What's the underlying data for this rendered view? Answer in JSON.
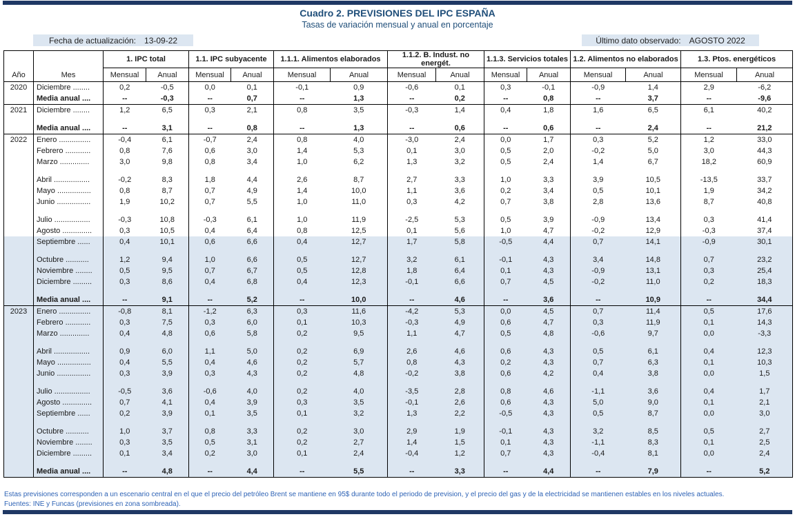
{
  "title": "Cuadro 2. PREVISIONES DEL IPC ESPAÑA",
  "subtitle": "Tasas de variación mensual y anual en porcentaje",
  "update": {
    "label": "Fecha de actualización:",
    "value": "13-09-22"
  },
  "observed": {
    "label": "Último dato observado:",
    "value": "AGOSTO 2022"
  },
  "colors": {
    "accent_bar": "#1f3864",
    "title_text": "#1f4e79",
    "shaded_zone": "#dce6f1",
    "footer_text": "#2d62b5",
    "border": "#000000"
  },
  "table": {
    "year_header": "Año",
    "month_header": "Mes",
    "groups": [
      "1. IPC total",
      "1.1. IPC subyacente",
      "1.1.1. Alimentos elaborados",
      "1.1.2. B. Indust. no energét.",
      "1.1.3. Servicios totales",
      "1.2. Alimentos no elaborados",
      "1.3. Ptos. energéticos"
    ],
    "subheaders": [
      "Mensual",
      "Anual"
    ],
    "blocks": [
      {
        "year": "2020",
        "rows": [
          {
            "label": "Diciembre ........",
            "values": [
              "0,2",
              "-0,5",
              "0,0",
              "0,1",
              "-0,1",
              "0,9",
              "-0,6",
              "0,1",
              "0,3",
              "-0,1",
              "-0,9",
              "1,4",
              "2,9",
              "-6,2"
            ]
          },
          {
            "label": "Media anual ....",
            "bold": true,
            "values": [
              "--",
              "-0,3",
              "--",
              "0,7",
              "--",
              "1,3",
              "--",
              "0,2",
              "--",
              "0,8",
              "--",
              "3,7",
              "--",
              "-9,6"
            ]
          }
        ]
      },
      {
        "year": "2021",
        "rows": [
          {
            "label": "Diciembre ........",
            "values": [
              "1,2",
              "6,5",
              "0,3",
              "2,1",
              "0,8",
              "3,5",
              "-0,3",
              "1,4",
              "0,4",
              "1,8",
              "1,6",
              "6,5",
              "6,1",
              "40,2"
            ]
          },
          {
            "spacer": true
          },
          {
            "label": "Media anual ....",
            "bold": true,
            "values": [
              "--",
              "3,1",
              "--",
              "0,8",
              "--",
              "1,3",
              "--",
              "0,6",
              "--",
              "0,6",
              "--",
              "2,4",
              "--",
              "21,2"
            ]
          }
        ]
      },
      {
        "year": "2022",
        "rows": [
          {
            "label": "Enero ...............",
            "values": [
              "-0,4",
              "6,1",
              "-0,7",
              "2,4",
              "0,8",
              "4,0",
              "-3,0",
              "2,4",
              "0,0",
              "1,7",
              "0,3",
              "5,2",
              "1,2",
              "33,0"
            ]
          },
          {
            "label": "Febrero ............",
            "values": [
              "0,8",
              "7,6",
              "0,6",
              "3,0",
              "1,4",
              "5,3",
              "0,1",
              "3,0",
              "0,5",
              "2,0",
              "-0,2",
              "5,0",
              "3,0",
              "44,3"
            ]
          },
          {
            "label": "Marzo ..............",
            "values": [
              "3,0",
              "9,8",
              "0,8",
              "3,4",
              "1,0",
              "6,2",
              "1,3",
              "3,2",
              "0,5",
              "2,4",
              "1,4",
              "6,7",
              "18,2",
              "60,9"
            ]
          },
          {
            "spacer": true
          },
          {
            "label": "Abril .................",
            "values": [
              "-0,2",
              "8,3",
              "1,8",
              "4,4",
              "2,6",
              "8,7",
              "2,7",
              "3,3",
              "1,0",
              "3,3",
              "3,9",
              "10,5",
              "-13,5",
              "33,7"
            ]
          },
          {
            "label": "Mayo ................",
            "values": [
              "0,8",
              "8,7",
              "0,7",
              "4,9",
              "1,4",
              "10,0",
              "1,1",
              "3,6",
              "0,2",
              "3,4",
              "0,5",
              "10,1",
              "1,9",
              "34,2"
            ]
          },
          {
            "label": "Junio ................",
            "values": [
              "1,9",
              "10,2",
              "0,7",
              "5,5",
              "1,0",
              "11,0",
              "0,3",
              "4,2",
              "0,7",
              "3,8",
              "2,8",
              "13,6",
              "8,7",
              "40,8"
            ]
          },
          {
            "spacer": true
          },
          {
            "label": "Julio .................",
            "values": [
              "-0,3",
              "10,8",
              "-0,3",
              "6,1",
              "1,0",
              "11,9",
              "-2,5",
              "5,3",
              "0,5",
              "3,9",
              "-0,9",
              "13,4",
              "0,3",
              "41,4"
            ]
          },
          {
            "label": "Agosto ..............",
            "values": [
              "0,3",
              "10,5",
              "0,4",
              "6,4",
              "0,8",
              "12,5",
              "0,1",
              "5,6",
              "1,0",
              "4,7",
              "-0,2",
              "12,9",
              "-0,3",
              "37,4"
            ]
          },
          {
            "label": "Septiembre ......",
            "shaded": true,
            "values": [
              "0,4",
              "10,1",
              "0,6",
              "6,6",
              "0,4",
              "12,7",
              "1,7",
              "5,8",
              "-0,5",
              "4,4",
              "0,7",
              "14,1",
              "-0,9",
              "30,1"
            ]
          },
          {
            "spacer": true,
            "shaded": true
          },
          {
            "label": "Octubre ...........",
            "shaded": true,
            "values": [
              "1,2",
              "9,4",
              "1,0",
              "6,6",
              "0,5",
              "12,7",
              "3,2",
              "6,1",
              "-0,1",
              "4,3",
              "3,4",
              "14,8",
              "0,7",
              "23,2"
            ]
          },
          {
            "label": "Noviembre ........",
            "shaded": true,
            "values": [
              "0,5",
              "9,5",
              "0,7",
              "6,7",
              "0,5",
              "12,8",
              "1,8",
              "6,4",
              "0,1",
              "4,3",
              "-0,9",
              "13,1",
              "0,3",
              "25,4"
            ]
          },
          {
            "label": "Diciembre .........",
            "shaded": true,
            "values": [
              "0,3",
              "8,6",
              "0,4",
              "6,8",
              "0,4",
              "12,3",
              "-0,1",
              "6,6",
              "0,7",
              "4,5",
              "-0,2",
              "11,0",
              "0,2",
              "18,3"
            ]
          },
          {
            "spacer": true,
            "shaded": true
          },
          {
            "label": "Media anual ....",
            "bold": true,
            "shaded": true,
            "values": [
              "--",
              "9,1",
              "--",
              "5,2",
              "--",
              "10,0",
              "--",
              "4,6",
              "--",
              "3,6",
              "--",
              "10,9",
              "--",
              "34,4"
            ]
          }
        ]
      },
      {
        "year": "2023",
        "rows": [
          {
            "label": "Enero ...............",
            "shaded": true,
            "values": [
              "-0,8",
              "8,1",
              "-1,2",
              "6,3",
              "0,3",
              "11,6",
              "-4,2",
              "5,3",
              "0,0",
              "4,5",
              "0,7",
              "11,4",
              "0,5",
              "17,6"
            ]
          },
          {
            "label": "Febrero ............",
            "shaded": true,
            "values": [
              "0,3",
              "7,5",
              "0,3",
              "6,0",
              "0,1",
              "10,3",
              "-0,3",
              "4,9",
              "0,6",
              "4,7",
              "0,3",
              "11,9",
              "0,1",
              "14,3"
            ]
          },
          {
            "label": "Marzo ..............",
            "shaded": true,
            "values": [
              "0,4",
              "4,8",
              "0,6",
              "5,8",
              "0,2",
              "9,5",
              "1,1",
              "4,7",
              "0,5",
              "4,8",
              "-0,6",
              "9,7",
              "0,0",
              "-3,3"
            ]
          },
          {
            "spacer": true,
            "shaded": true
          },
          {
            "label": "Abril .................",
            "shaded": true,
            "values": [
              "0,9",
              "6,0",
              "1,1",
              "5,0",
              "0,2",
              "6,9",
              "2,6",
              "4,6",
              "0,6",
              "4,3",
              "0,5",
              "6,1",
              "0,4",
              "12,3"
            ]
          },
          {
            "label": "Mayo ................",
            "shaded": true,
            "values": [
              "0,4",
              "5,5",
              "0,4",
              "4,6",
              "0,2",
              "5,7",
              "0,8",
              "4,3",
              "0,2",
              "4,3",
              "0,7",
              "6,3",
              "0,1",
              "10,3"
            ]
          },
          {
            "label": "Junio ................",
            "shaded": true,
            "values": [
              "0,3",
              "3,9",
              "0,3",
              "4,3",
              "0,2",
              "4,8",
              "-0,2",
              "3,8",
              "0,6",
              "4,2",
              "0,4",
              "3,8",
              "0,0",
              "1,5"
            ]
          },
          {
            "spacer": true,
            "shaded": true
          },
          {
            "label": "Julio .................",
            "shaded": true,
            "values": [
              "-0,5",
              "3,6",
              "-0,6",
              "4,0",
              "0,2",
              "4,0",
              "-3,5",
              "2,8",
              "0,8",
              "4,6",
              "-1,1",
              "3,6",
              "0,4",
              "1,7"
            ]
          },
          {
            "label": "Agosto ..............",
            "shaded": true,
            "values": [
              "0,7",
              "4,1",
              "0,4",
              "3,9",
              "0,3",
              "3,5",
              "-0,1",
              "2,6",
              "0,6",
              "4,3",
              "5,0",
              "9,0",
              "0,1",
              "2,1"
            ]
          },
          {
            "label": "Septiembre ......",
            "shaded": true,
            "values": [
              "0,2",
              "3,9",
              "0,1",
              "3,5",
              "0,1",
              "3,2",
              "1,3",
              "2,2",
              "-0,5",
              "4,3",
              "0,5",
              "8,7",
              "0,0",
              "3,0"
            ]
          },
          {
            "spacer": true,
            "shaded": true
          },
          {
            "label": "Octubre ...........",
            "shaded": true,
            "values": [
              "1,0",
              "3,7",
              "0,8",
              "3,3",
              "0,2",
              "3,0",
              "2,9",
              "1,9",
              "-0,1",
              "4,3",
              "3,2",
              "8,5",
              "0,5",
              "2,7"
            ]
          },
          {
            "label": "Noviembre ........",
            "shaded": true,
            "values": [
              "0,3",
              "3,5",
              "0,5",
              "3,1",
              "0,2",
              "2,7",
              "1,4",
              "1,5",
              "0,1",
              "4,3",
              "-1,1",
              "8,3",
              "0,1",
              "2,5"
            ]
          },
          {
            "label": "Diciembre .........",
            "shaded": true,
            "values": [
              "0,1",
              "3,4",
              "0,2",
              "3,0",
              "0,1",
              "2,4",
              "-0,4",
              "1,2",
              "0,7",
              "4,3",
              "-0,4",
              "8,1",
              "0,0",
              "2,4"
            ]
          },
          {
            "spacer": true,
            "shaded": true
          },
          {
            "label": "Media anual ....",
            "bold": true,
            "shaded": true,
            "values": [
              "--",
              "4,8",
              "--",
              "4,4",
              "--",
              "5,5",
              "--",
              "3,3",
              "--",
              "4,4",
              "--",
              "7,9",
              "--",
              "5,2"
            ]
          }
        ]
      }
    ]
  },
  "footnote": "Estas previsiones corresponden a un escenario central en el que el precio del petróleo Brent se mantiene en 95$ durante todo el periodo de prevision, y el precio del gas y de la electricidad se mantienen estables en los niveles actuales.",
  "sources": "Fuentes: INE y Funcas (previsiones en zona sombreada)."
}
